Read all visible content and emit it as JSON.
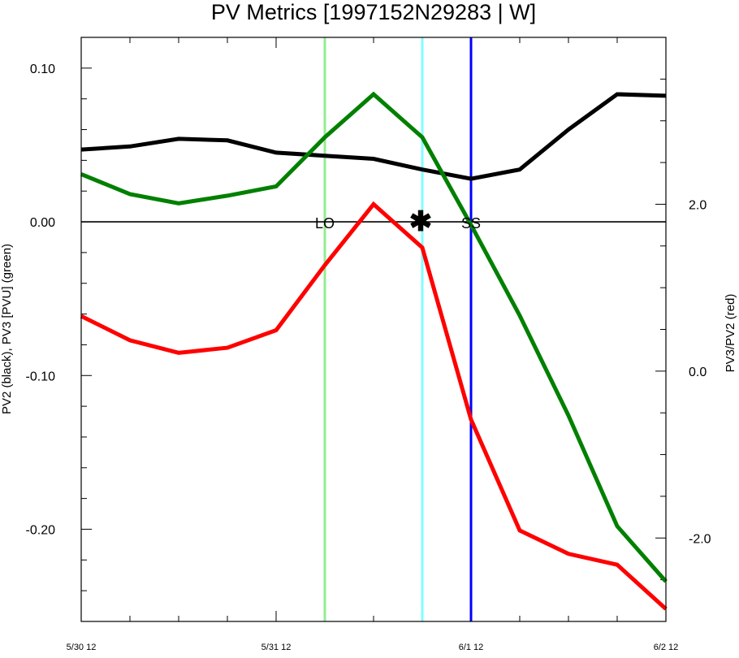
{
  "chart_data": {
    "type": "line",
    "title": "PV Metrics [1997152N29283 | W]",
    "ylabel_left": "PV2 (black), PV3 [PVU] (green)",
    "ylabel_right": "PV3/PV2 (red)",
    "x_tick_labels": [
      "5/30 12",
      "5/31 12",
      "6/1 12",
      "6/2 12"
    ],
    "x_tick_hours": [
      0,
      24,
      48,
      72
    ],
    "xlim_hours": [
      0,
      72
    ],
    "ylim_left": [
      -0.26,
      0.12
    ],
    "ylim_right": [
      -3.0,
      4.0
    ],
    "y_left_ticks": [
      0.1,
      0.0,
      -0.1,
      -0.2
    ],
    "y_left_tick_labels": [
      "0.10",
      "0.00",
      "-0.10",
      "-0.20"
    ],
    "y_right_ticks": [
      2.0,
      0.0,
      -2.0
    ],
    "y_right_tick_labels": [
      "2.0",
      "0.0",
      "-2.0"
    ],
    "x_hours": [
      0,
      6,
      12,
      18,
      24,
      30,
      36,
      42,
      48,
      54,
      60,
      66,
      72
    ],
    "series": [
      {
        "axis": "left",
        "color": "#000000",
        "values": [
          0.047,
          0.049,
          0.054,
          0.053,
          0.045,
          0.043,
          0.041,
          0.034,
          0.028,
          0.034,
          0.06,
          0.083,
          0.082
        ]
      },
      {
        "axis": "left",
        "color": "#008000",
        "values": [
          0.031,
          0.018,
          0.012,
          0.017,
          0.023,
          0.055,
          0.083,
          0.055,
          -0.002,
          -0.061,
          -0.126,
          -0.198,
          -0.234
        ]
      },
      {
        "axis": "right",
        "color": "#ff0000",
        "values": [
          0.66,
          0.37,
          0.22,
          0.28,
          0.49,
          1.27,
          2.0,
          1.48,
          -0.58,
          -1.91,
          -2.19,
          -2.32,
          -2.85
        ]
      }
    ],
    "zero_line_left": 0.0,
    "markers": [
      {
        "label": "LO",
        "x_hours": 30,
        "color": "#90ee90"
      },
      {
        "label": "",
        "x_hours": 42,
        "color": "#80ffff"
      },
      {
        "label": "SS",
        "x_hours": 48,
        "color": "#0000ff"
      }
    ],
    "star_symbol": {
      "glyph": "✱",
      "x_hours": 42,
      "y": 0.0
    }
  }
}
